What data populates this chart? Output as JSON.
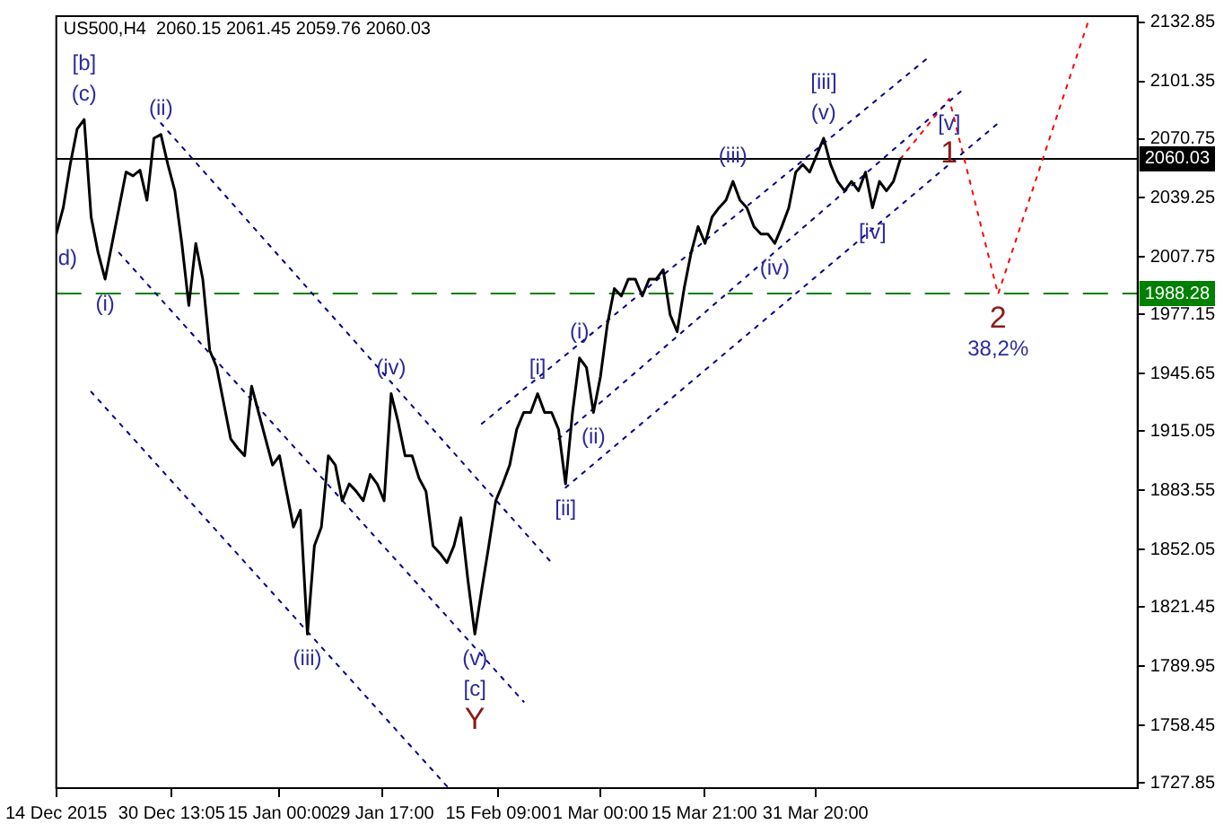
{
  "chart_data": {
    "type": "line",
    "title": "US500,H4  2060.15 2061.45 2059.76 2060.03",
    "xlim": [
      "2015-12-14",
      "2016-05-17"
    ],
    "xticks": [
      {
        "value": "2015-12-14",
        "label": "14 Dec 2015"
      },
      {
        "value": "2015-12-30T13:05",
        "label": "30 Dec 13:05"
      },
      {
        "value": "2016-01-15",
        "label": "15 Jan 00:00"
      },
      {
        "value": "2016-01-29T17:00",
        "label": "29 Jan 17:00"
      },
      {
        "value": "2016-02-15T09:00",
        "label": "15 Feb 09:00"
      },
      {
        "value": "2016-03-01",
        "label": "1 Mar 00:00"
      },
      {
        "value": "2016-03-15T21:00",
        "label": "15 Mar 21:00"
      },
      {
        "value": "2016-03-31T20:00",
        "label": "31 Mar 20:00"
      }
    ],
    "ylim": [
      1725,
      2136
    ],
    "yticks": [
      1727.85,
      1758.45,
      1789.95,
      1821.45,
      1852.05,
      1883.55,
      1915.05,
      1945.65,
      1977.15,
      2007.75,
      2039.25,
      2070.75,
      2101.35,
      2132.85
    ],
    "grid": false,
    "legend": false,
    "marker": "none",
    "series": [
      {
        "color": "#000000",
        "line_style": "solid",
        "x": [
          "2015-12-14",
          "2015-12-15",
          "2015-12-16",
          "2015-12-17",
          "2015-12-18",
          "2015-12-19",
          "2015-12-20",
          "2015-12-21",
          "2015-12-22",
          "2015-12-23",
          "2015-12-24",
          "2015-12-25",
          "2015-12-26",
          "2015-12-27",
          "2015-12-28",
          "2015-12-29",
          "2015-12-30",
          "2015-12-31",
          "2016-01-01",
          "2016-01-02",
          "2016-01-03",
          "2016-01-04",
          "2016-01-05",
          "2016-01-06",
          "2016-01-07",
          "2016-01-08",
          "2016-01-09",
          "2016-01-10",
          "2016-01-11",
          "2016-01-12",
          "2016-01-13",
          "2016-01-14",
          "2016-01-15",
          "2016-01-16",
          "2016-01-17",
          "2016-01-18",
          "2016-01-19",
          "2016-01-20",
          "2016-01-21",
          "2016-01-22",
          "2016-01-23",
          "2016-01-24",
          "2016-01-25",
          "2016-01-26",
          "2016-01-27",
          "2016-01-28",
          "2016-01-29",
          "2016-01-30",
          "2016-01-31",
          "2016-02-01",
          "2016-02-02",
          "2016-02-03",
          "2016-02-04",
          "2016-02-05",
          "2016-02-06",
          "2016-02-07",
          "2016-02-08",
          "2016-02-09",
          "2016-02-10",
          "2016-02-11",
          "2016-02-12",
          "2016-02-13",
          "2016-02-14",
          "2016-02-15",
          "2016-02-16",
          "2016-02-17",
          "2016-02-18",
          "2016-02-19",
          "2016-02-20",
          "2016-02-21",
          "2016-02-22",
          "2016-02-23",
          "2016-02-24",
          "2016-02-25",
          "2016-02-26",
          "2016-02-27",
          "2016-02-28",
          "2016-02-29",
          "2016-03-01",
          "2016-03-02",
          "2016-03-03",
          "2016-03-04",
          "2016-03-05",
          "2016-03-06",
          "2016-03-07",
          "2016-03-08",
          "2016-03-09",
          "2016-03-10",
          "2016-03-11",
          "2016-03-12",
          "2016-03-13",
          "2016-03-14",
          "2016-03-15",
          "2016-03-16",
          "2016-03-17",
          "2016-03-18",
          "2016-03-19",
          "2016-03-20",
          "2016-03-21",
          "2016-03-22",
          "2016-03-23",
          "2016-03-24",
          "2016-03-25",
          "2016-03-26",
          "2016-03-27",
          "2016-03-28",
          "2016-03-29",
          "2016-03-30",
          "2016-03-31",
          "2016-04-01",
          "2016-04-02",
          "2016-04-03",
          "2016-04-04",
          "2016-04-05",
          "2016-04-06",
          "2016-04-07",
          "2016-04-08",
          "2016-04-09",
          "2016-04-10",
          "2016-04-11",
          "2016-04-12",
          "2016-04-13"
        ],
        "values": [
          2020,
          2034,
          2057,
          2076,
          2081,
          2029,
          2010,
          1996,
          2015,
          2034,
          2053,
          2051,
          2054,
          2038,
          2071,
          2073,
          2057,
          2043,
          2015,
          1982,
          2015,
          1996,
          1958,
          1949,
          1930,
          1911,
          1906,
          1902,
          1939,
          1925,
          1911,
          1897,
          1902,
          1883,
          1864,
          1873,
          1807,
          1854,
          1864,
          1902,
          1897,
          1878,
          1887,
          1883,
          1878,
          1892,
          1887,
          1878,
          1935,
          1920,
          1902,
          1902,
          1890,
          1883,
          1854,
          1850,
          1845,
          1854,
          1869,
          1836,
          1807,
          1831,
          1854,
          1878,
          1887,
          1897,
          1916,
          1925,
          1925,
          1935,
          1925,
          1925,
          1916,
          1887,
          1925,
          1954,
          1949,
          1925,
          1944,
          1972,
          1991,
          1987,
          1996,
          1996,
          1987,
          1996,
          1996,
          2001,
          1977,
          1968,
          1991,
          2010,
          2024,
          2015,
          2029,
          2034,
          2038,
          2048,
          2038,
          2034,
          2024,
          2020,
          2020,
          2015,
          2024,
          2034,
          2053,
          2057,
          2053,
          2062,
          2071,
          2057,
          2048,
          2043,
          2048,
          2043,
          2053,
          2034,
          2048,
          2043,
          2048,
          2060
        ]
      },
      {
        "color": "#00008b",
        "line_style": "dotted",
        "x": [
          "2015-12-29",
          "2016-02-23"
        ],
        "values": [
          2079,
          1845
        ]
      },
      {
        "color": "#00008b",
        "line_style": "dotted",
        "x": [
          "2015-12-23",
          "2016-02-19"
        ],
        "values": [
          2010,
          1771
        ]
      },
      {
        "color": "#00008b",
        "line_style": "dotted",
        "x": [
          "2015-12-19",
          "2016-02-08"
        ],
        "values": [
          1936,
          1726
        ]
      },
      {
        "color": "#00008b",
        "line_style": "dotted",
        "x": [
          "2016-02-13",
          "2016-04-17"
        ],
        "values": [
          1919,
          2114
        ]
      },
      {
        "color": "#00008b",
        "line_style": "dotted",
        "x": [
          "2016-02-24",
          "2016-04-22"
        ],
        "values": [
          1911,
          2097
        ]
      },
      {
        "color": "#00008b",
        "line_style": "dotted",
        "x": [
          "2016-02-25",
          "2016-04-27"
        ],
        "values": [
          1885,
          2079
        ]
      },
      {
        "color": "#ff0000",
        "line_style": "dotted",
        "x": [
          "2016-04-13",
          "2016-04-20",
          "2016-04-27",
          "2016-05-10"
        ],
        "values": [
          2060,
          2092,
          1988,
          2134
        ]
      }
    ],
    "ref_lines": [
      {
        "axis": "y",
        "value": 1988.28,
        "label": "1988.28",
        "color": "#008000",
        "line_style": "dashed"
      },
      {
        "axis": "y",
        "value": 2060.03,
        "label": "2060.03",
        "color": "#000000",
        "line_style": "solid"
      }
    ],
    "annotations": [
      {
        "text": "(c)",
        "x": "2015-12-18",
        "y": 2081
      },
      {
        "text": "[b]",
        "x": "2015-12-18",
        "y": 2081
      },
      {
        "text": "(ii)",
        "x": "2015-12-29",
        "y": 2073
      },
      {
        "text": "d)",
        "x": "2015-12-14",
        "y": 2020
      },
      {
        "text": "(i)",
        "x": "2015-12-21",
        "y": 1996
      },
      {
        "text": "(iii)",
        "x": "2016-01-19",
        "y": 1807
      },
      {
        "text": "(iv)",
        "x": "2016-01-31",
        "y": 1935
      },
      {
        "text": "(v)",
        "x": "2016-02-12",
        "y": 1807
      },
      {
        "text": "[c]",
        "x": "2016-02-12",
        "y": 1807
      },
      {
        "text": "Y",
        "x": "2016-02-12",
        "y": 1807
      },
      {
        "text": "[i]",
        "x": "2016-02-21",
        "y": 1935
      },
      {
        "text": "[ii]",
        "x": "2016-02-25",
        "y": 1887
      },
      {
        "text": "(i)",
        "x": "2016-02-27",
        "y": 1954
      },
      {
        "text": "(ii)",
        "x": "2016-02-29",
        "y": 1925
      },
      {
        "text": "(iii)",
        "x": "2016-03-20",
        "y": 2048
      },
      {
        "text": "(iv)",
        "x": "2016-03-26",
        "y": 2015
      },
      {
        "text": "(v)",
        "x": "2016-04-02",
        "y": 2071
      },
      {
        "text": "[iii]",
        "x": "2016-04-02",
        "y": 2071
      },
      {
        "text": "[iv]",
        "x": "2016-04-09",
        "y": 2034
      },
      {
        "text": "[v]",
        "x": "2016-04-20",
        "y": 2092
      },
      {
        "text": "1",
        "x": "2016-04-20",
        "y": 2092
      },
      {
        "text": "2",
        "x": "2016-04-27",
        "y": 1988
      },
      {
        "text": "38,2%",
        "x": "2016-04-27",
        "y": 1988
      }
    ]
  }
}
